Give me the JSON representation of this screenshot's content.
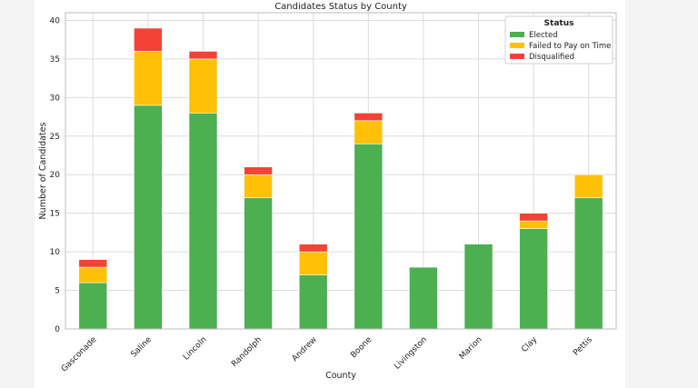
{
  "chart_data": {
    "type": "bar",
    "stacked": true,
    "title": "Candidates Status by County",
    "xlabel": "County",
    "ylabel": "Number of Candidates",
    "categories": [
      "Gasconade",
      "Saline",
      "Lincoln",
      "Randolph",
      "Andrew",
      "Boone",
      "Livingston",
      "Marion",
      "Clay",
      "Pettis"
    ],
    "series": [
      {
        "name": "Elected",
        "color": "#4caf50",
        "values": [
          6,
          29,
          28,
          17,
          7,
          24,
          8,
          11,
          13,
          17
        ]
      },
      {
        "name": "Failed to Pay on Time",
        "color": "#ffc107",
        "values": [
          2,
          7,
          7,
          3,
          3,
          3,
          0,
          0,
          1,
          3
        ]
      },
      {
        "name": "Disqualified",
        "color": "#f44336",
        "values": [
          1,
          3,
          1,
          1,
          1,
          1,
          0,
          0,
          1,
          0
        ]
      }
    ],
    "ylim": [
      0,
      41
    ],
    "yticks": [
      0,
      5,
      10,
      15,
      20,
      25,
      30,
      35,
      40
    ],
    "grid": true,
    "legend": {
      "title": "Status",
      "placement": "top-right"
    }
  }
}
